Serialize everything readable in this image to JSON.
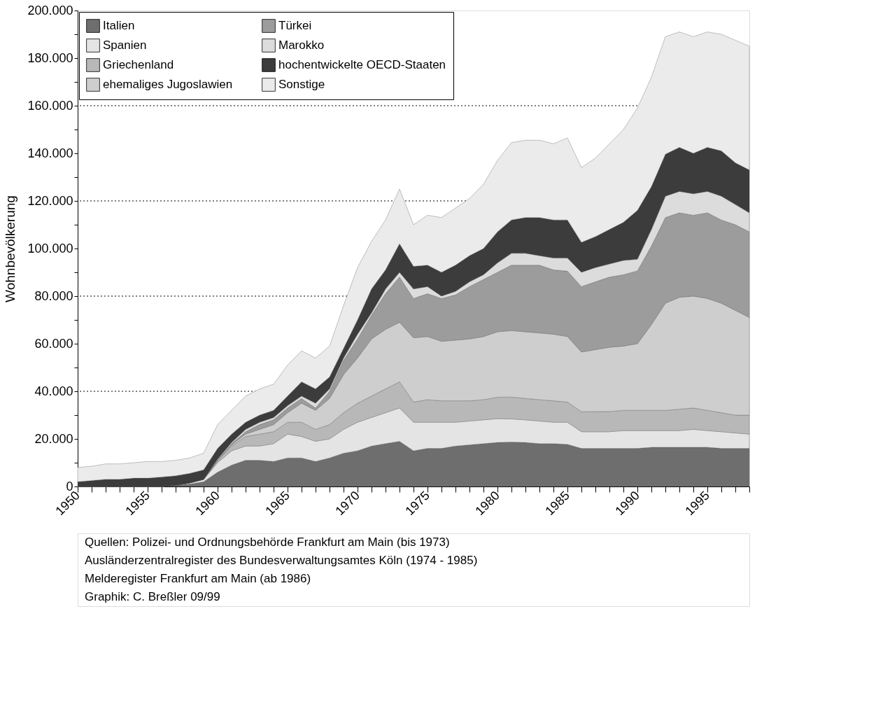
{
  "chart_data": {
    "type": "area",
    "stacked": true,
    "ylabel": "Wohnbevölkerung",
    "x": [
      1950,
      1951,
      1952,
      1953,
      1954,
      1955,
      1956,
      1957,
      1958,
      1959,
      1960,
      1961,
      1962,
      1963,
      1964,
      1965,
      1966,
      1967,
      1968,
      1969,
      1970,
      1971,
      1972,
      1973,
      1974,
      1975,
      1976,
      1977,
      1978,
      1979,
      1980,
      1981,
      1982,
      1983,
      1984,
      1985,
      1986,
      1987,
      1988,
      1989,
      1990,
      1991,
      1992,
      1993,
      1994,
      1995,
      1996,
      1997,
      1998
    ],
    "series": [
      {
        "name": "Italien",
        "color": "#6e6e6e",
        "values": [
          0,
          0,
          0,
          0,
          0,
          0,
          0,
          500,
          1000,
          2000,
          6000,
          9000,
          11000,
          11000,
          10500,
          12000,
          12000,
          10500,
          12000,
          14000,
          15000,
          17000,
          18000,
          19000,
          15000,
          16000,
          16000,
          17000,
          17500,
          18000,
          18500,
          18700,
          18500,
          18000,
          18000,
          17700,
          16000,
          16000,
          16000,
          16000,
          16000,
          16500,
          16500,
          16500,
          16500,
          16500,
          16000,
          16000,
          16000
        ]
      },
      {
        "name": "Spanien",
        "color": "#e4e4e4",
        "values": [
          0,
          0,
          0,
          0,
          0,
          0,
          0,
          0,
          500,
          1000,
          4000,
          6000,
          6000,
          6000,
          7500,
          10000,
          9000,
          8500,
          8000,
          10000,
          12000,
          12000,
          13000,
          14000,
          12000,
          11000,
          11000,
          10000,
          10000,
          10000,
          10000,
          9700,
          9500,
          9500,
          9000,
          9300,
          7000,
          7000,
          7000,
          7500,
          7500,
          7000,
          7000,
          7000,
          7500,
          7000,
          7000,
          6500,
          6000
        ]
      },
      {
        "name": "Griechenland",
        "color": "#b8b8b8",
        "values": [
          0,
          0,
          0,
          0,
          0,
          0,
          0,
          0,
          0,
          0,
          1000,
          2000,
          4000,
          5000,
          5000,
          5000,
          6000,
          5000,
          6000,
          7000,
          8000,
          9000,
          10000,
          11000,
          8500,
          9500,
          9000,
          9000,
          8500,
          8500,
          9000,
          9200,
          9000,
          9000,
          9000,
          8500,
          8400,
          8500,
          8500,
          8500,
          8500,
          8500,
          8500,
          9000,
          9000,
          8500,
          8000,
          7500,
          8000
        ]
      },
      {
        "name": "ehemaliges Jugoslawien",
        "color": "#cecece",
        "values": [
          0,
          0,
          0,
          0,
          0,
          0,
          0,
          0,
          0,
          0,
          0,
          500,
          1000,
          2000,
          3000,
          4000,
          8000,
          8000,
          11000,
          16000,
          19000,
          24000,
          25000,
          25000,
          27000,
          26500,
          25000,
          25500,
          26000,
          26500,
          27500,
          27900,
          28000,
          28000,
          28000,
          27500,
          25100,
          26000,
          27000,
          27000,
          28000,
          36000,
          45000,
          47000,
          47000,
          47000,
          46000,
          44000,
          41000
        ]
      },
      {
        "name": "Türkei",
        "color": "#9c9c9c",
        "values": [
          0,
          0,
          0,
          0,
          0,
          0,
          0,
          0,
          0,
          0,
          0,
          500,
          1000,
          2000,
          2000,
          2000,
          2000,
          1000,
          3000,
          6000,
          8000,
          10000,
          15000,
          19000,
          16500,
          18000,
          18000,
          19000,
          22000,
          24000,
          25000,
          27500,
          28000,
          28500,
          27000,
          27500,
          27500,
          28500,
          29500,
          30000,
          30600,
          33000,
          36000,
          35500,
          34000,
          36000,
          35000,
          36000,
          36000
        ]
      },
      {
        "name": "Marokko",
        "color": "#dcdcdc",
        "values": [
          0,
          0,
          0,
          0,
          0,
          0,
          0,
          0,
          0,
          0,
          500,
          500,
          1000,
          1000,
          1000,
          1000,
          1000,
          2000,
          1000,
          1000,
          2000,
          1000,
          2000,
          2000,
          4000,
          3000,
          1000,
          1500,
          2000,
          2000,
          4000,
          5000,
          5000,
          4000,
          5000,
          5500,
          6000,
          6000,
          5500,
          6000,
          4900,
          7000,
          9000,
          9000,
          9000,
          9000,
          10000,
          8500,
          8000
        ]
      },
      {
        "name": "hochentwickelte OECD-Staaten",
        "color": "#3c3c3c",
        "values": [
          2000,
          2500,
          3000,
          3000,
          3500,
          3500,
          4000,
          4000,
          4000,
          4000,
          4500,
          3500,
          3000,
          3000,
          3000,
          4000,
          6000,
          6000,
          5000,
          4000,
          6000,
          10000,
          8000,
          12000,
          9500,
          9000,
          10000,
          11000,
          11000,
          11000,
          13000,
          14000,
          15000,
          16000,
          16000,
          16000,
          12600,
          13000,
          14500,
          16000,
          20500,
          18000,
          17600,
          18500,
          17000,
          18500,
          19000,
          17500,
          18000
        ]
      },
      {
        "name": "Sonstige",
        "color": "#ebebeb",
        "values": [
          6000,
          6000,
          6500,
          6500,
          6500,
          7000,
          6500,
          6500,
          6500,
          7000,
          10000,
          10000,
          11000,
          11000,
          11000,
          13000,
          13000,
          13000,
          13000,
          18000,
          22000,
          20000,
          21000,
          23000,
          17500,
          21000,
          23000,
          24000,
          24000,
          27000,
          30000,
          32500,
          32500,
          32500,
          32000,
          34500,
          31400,
          33000,
          36000,
          39000,
          43000,
          46000,
          49400,
          48500,
          49000,
          48500,
          49000,
          51500,
          52000
        ]
      }
    ],
    "xlim": [
      1950,
      1998
    ],
    "xticks": [
      1950,
      {
        "value": 1951,
        "label": null
      },
      {
        "value": 1952,
        "label": null
      },
      {
        "value": 1953,
        "label": null
      },
      {
        "value": 1954,
        "label": null
      },
      1955,
      {
        "value": 1956,
        "label": null
      },
      {
        "value": 1957,
        "label": null
      },
      {
        "value": 1958,
        "label": null
      },
      {
        "value": 1959,
        "label": null
      },
      1960,
      {
        "value": 1961,
        "label": null
      },
      {
        "value": 1962,
        "label": null
      },
      {
        "value": 1963,
        "label": null
      },
      {
        "value": 1964,
        "label": null
      },
      1965,
      {
        "value": 1966,
        "label": null
      },
      {
        "value": 1967,
        "label": null
      },
      {
        "value": 1968,
        "label": null
      },
      {
        "value": 1969,
        "label": null
      },
      1970,
      {
        "value": 1971,
        "label": null
      },
      {
        "value": 1972,
        "label": null
      },
      {
        "value": 1973,
        "label": null
      },
      {
        "value": 1974,
        "label": null
      },
      1975,
      {
        "value": 1976,
        "label": null
      },
      {
        "value": 1977,
        "label": null
      },
      {
        "value": 1978,
        "label": null
      },
      {
        "value": 1979,
        "label": null
      },
      1980,
      {
        "value": 1981,
        "label": null
      },
      {
        "value": 1982,
        "label": null
      },
      {
        "value": 1983,
        "label": null
      },
      {
        "value": 1984,
        "label": null
      },
      1985,
      {
        "value": 1986,
        "label": null
      },
      {
        "value": 1987,
        "label": null
      },
      {
        "value": 1988,
        "label": null
      },
      {
        "value": 1989,
        "label": null
      },
      1990,
      {
        "value": 1991,
        "label": null
      },
      {
        "value": 1992,
        "label": null
      },
      {
        "value": 1993,
        "label": null
      },
      {
        "value": 1994,
        "label": null
      },
      1995,
      {
        "value": 1996,
        "label": null
      },
      {
        "value": 1997,
        "label": null
      },
      {
        "value": 1998,
        "label": null
      }
    ],
    "ylim": [
      0,
      200000
    ],
    "yticks": [
      {
        "value": 0,
        "label": "0"
      },
      {
        "value": 10000,
        "label": null
      },
      {
        "value": 20000,
        "label": "20.000"
      },
      {
        "value": 30000,
        "label": null
      },
      {
        "value": 40000,
        "label": "40.000"
      },
      {
        "value": 50000,
        "label": null
      },
      {
        "value": 60000,
        "label": "60.000"
      },
      {
        "value": 70000,
        "label": null
      },
      {
        "value": 80000,
        "label": "80.000"
      },
      {
        "value": 90000,
        "label": null
      },
      {
        "value": 100000,
        "label": "100.000"
      },
      {
        "value": 110000,
        "label": null
      },
      {
        "value": 120000,
        "label": "120.000"
      },
      {
        "value": 130000,
        "label": null
      },
      {
        "value": 140000,
        "label": "140.000"
      },
      {
        "value": 150000,
        "label": null
      },
      {
        "value": 160000,
        "label": "160.000"
      },
      {
        "value": 170000,
        "label": null
      },
      {
        "value": 180000,
        "label": "180.000"
      },
      {
        "value": 190000,
        "label": null
      },
      {
        "value": 200000,
        "label": "200.000"
      }
    ],
    "ref_lines": [
      {
        "axis": "y",
        "value": 40000,
        "line_style": "dotted"
      },
      {
        "axis": "y",
        "value": 80000,
        "line_style": "dotted"
      },
      {
        "axis": "y",
        "value": 120000,
        "line_style": "dotted"
      },
      {
        "axis": "y",
        "value": 160000,
        "line_style": "dotted"
      }
    ],
    "grid": false,
    "legend": "top left",
    "annotations": [
      "Quellen:   Polizei- und Ordnungsbehörde Frankfurt am Main (bis 1973)",
      "Ausländerzentralregister des Bundesverwaltungsamtes Köln (1974 - 1985)",
      "Melderegister Frankfurt am Main (ab 1986)",
      "Graphik:   C. Breßler 09/99"
    ]
  }
}
